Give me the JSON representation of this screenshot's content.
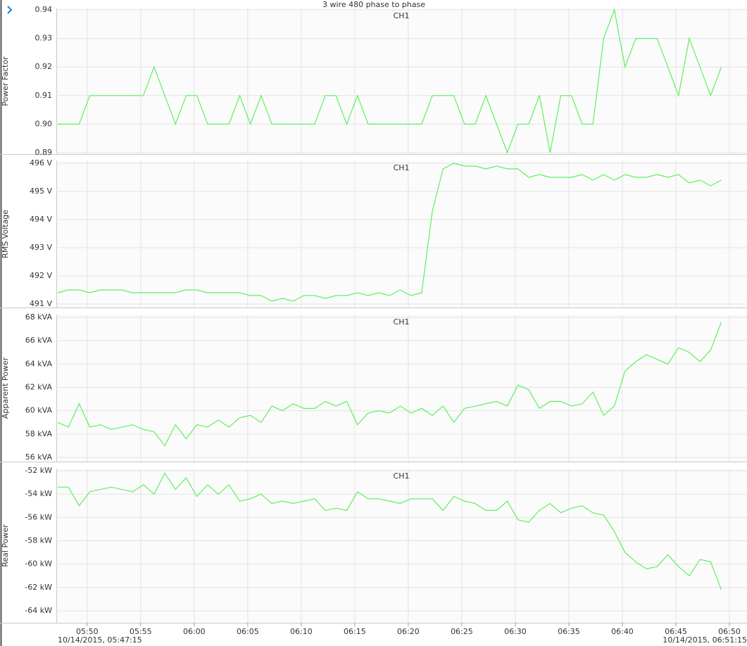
{
  "chart_data": {
    "type": "line",
    "title": "3 wire 480 phase to phase",
    "x": [
      "2015-10-14T05:47:15",
      "2015-10-14T05:48:15",
      "2015-10-14T05:49:15",
      "2015-10-14T05:50:15",
      "2015-10-14T05:51:15",
      "2015-10-14T05:52:15",
      "2015-10-14T05:53:15",
      "2015-10-14T05:54:15",
      "2015-10-14T05:55:15",
      "2015-10-14T05:56:15",
      "2015-10-14T05:57:15",
      "2015-10-14T05:58:15",
      "2015-10-14T05:59:15",
      "2015-10-14T06:00:15",
      "2015-10-14T06:01:15",
      "2015-10-14T06:02:15",
      "2015-10-14T06:03:15",
      "2015-10-14T06:04:15",
      "2015-10-14T06:05:15",
      "2015-10-14T06:06:15",
      "2015-10-14T06:07:15",
      "2015-10-14T06:08:15",
      "2015-10-14T06:09:15",
      "2015-10-14T06:10:15",
      "2015-10-14T06:11:15",
      "2015-10-14T06:12:15",
      "2015-10-14T06:13:15",
      "2015-10-14T06:14:15",
      "2015-10-14T06:15:15",
      "2015-10-14T06:16:15",
      "2015-10-14T06:17:15",
      "2015-10-14T06:18:15",
      "2015-10-14T06:19:15",
      "2015-10-14T06:20:15",
      "2015-10-14T06:21:15",
      "2015-10-14T06:22:15",
      "2015-10-14T06:23:15",
      "2015-10-14T06:24:15",
      "2015-10-14T06:25:15",
      "2015-10-14T06:26:15",
      "2015-10-14T06:27:15",
      "2015-10-14T06:28:15",
      "2015-10-14T06:29:15",
      "2015-10-14T06:30:15",
      "2015-10-14T06:31:15",
      "2015-10-14T06:32:15",
      "2015-10-14T06:33:15",
      "2015-10-14T06:34:15",
      "2015-10-14T06:35:15",
      "2015-10-14T06:36:15",
      "2015-10-14T06:37:15",
      "2015-10-14T06:38:15",
      "2015-10-14T06:39:15",
      "2015-10-14T06:40:15",
      "2015-10-14T06:41:15",
      "2015-10-14T06:42:15",
      "2015-10-14T06:43:15",
      "2015-10-14T06:44:15",
      "2015-10-14T06:45:15",
      "2015-10-14T06:46:15",
      "2015-10-14T06:47:15",
      "2015-10-14T06:48:15",
      "2015-10-14T06:49:15"
    ],
    "xlim": [
      {
        "value": "2015-10-14T05:47:15",
        "label": "10/14/2015, 05:47:15"
      },
      {
        "value": "2015-10-14T06:51:15",
        "label": "10/14/2015, 06:51:15"
      }
    ],
    "xticks": [
      {
        "value": "2015-10-14T05:50:00",
        "label": "05:50"
      },
      {
        "value": "2015-10-14T05:55:00",
        "label": "05:55"
      },
      {
        "value": "2015-10-14T06:00:00",
        "label": "06:00"
      },
      {
        "value": "2015-10-14T06:05:00",
        "label": "06:05"
      },
      {
        "value": "2015-10-14T06:10:00",
        "label": "06:10"
      },
      {
        "value": "2015-10-14T06:15:00",
        "label": "06:15"
      },
      {
        "value": "2015-10-14T06:20:00",
        "label": "06:20"
      },
      {
        "value": "2015-10-14T06:25:00",
        "label": "06:25"
      },
      {
        "value": "2015-10-14T06:30:00",
        "label": "06:30"
      },
      {
        "value": "2015-10-14T06:35:00",
        "label": "06:35"
      },
      {
        "value": "2015-10-14T06:40:00",
        "label": "06:40"
      },
      {
        "value": "2015-10-14T06:45:00",
        "label": "06:45"
      },
      {
        "value": "2015-10-14T06:50:00",
        "label": "06:50"
      }
    ],
    "grid": true,
    "panels": [
      {
        "ylabel": "Power Factor",
        "ylim": [
          0.8895,
          0.9405
        ],
        "yticks": [
          0.89,
          {
            "value": 0.9,
            "label": "0.90"
          },
          0.91,
          0.92,
          0.93,
          0.94
        ],
        "series": [
          {
            "name": "CH1",
            "color": "#5df05d",
            "values": [
              0.9,
              0.9,
              0.9,
              0.91,
              0.91,
              0.91,
              0.91,
              0.91,
              0.91,
              0.92,
              0.91,
              0.9,
              0.91,
              0.91,
              0.9,
              0.9,
              0.9,
              0.91,
              0.9,
              0.91,
              0.9,
              0.9,
              0.9,
              0.9,
              0.9,
              0.91,
              0.91,
              0.9,
              0.91,
              0.9,
              0.9,
              0.9,
              0.9,
              0.9,
              0.9,
              0.91,
              0.91,
              0.91,
              0.9,
              0.9,
              0.91,
              0.9,
              0.89,
              0.9,
              0.9,
              0.91,
              0.89,
              0.91,
              0.91,
              0.9,
              0.9,
              0.93,
              0.94,
              0.92,
              0.93,
              0.93,
              0.93,
              0.92,
              0.91,
              0.93,
              0.92,
              0.91,
              0.92
            ]
          }
        ]
      },
      {
        "ylabel": "RMS Voltage",
        "ylim": [
          490.875,
          496.1
        ],
        "yticks": [
          {
            "value": 491,
            "label": "491 V"
          },
          {
            "value": 492,
            "label": "492 V"
          },
          {
            "value": 493,
            "label": "493 V"
          },
          {
            "value": 494,
            "label": "494 V"
          },
          {
            "value": 495,
            "label": "495 V"
          },
          {
            "value": 496,
            "label": "496 V"
          }
        ],
        "series": [
          {
            "name": "CH1",
            "color": "#5df05d",
            "values": [
              491.4,
              491.5,
              491.5,
              491.4,
              491.5,
              491.5,
              491.5,
              491.4,
              491.4,
              491.4,
              491.4,
              491.4,
              491.5,
              491.5,
              491.4,
              491.4,
              491.4,
              491.4,
              491.3,
              491.3,
              491.1,
              491.2,
              491.1,
              491.3,
              491.3,
              491.2,
              491.3,
              491.3,
              491.4,
              491.3,
              491.4,
              491.3,
              491.5,
              491.3,
              491.4,
              494.3,
              495.8,
              496.0,
              495.9,
              495.9,
              495.8,
              495.9,
              495.8,
              495.8,
              495.5,
              495.6,
              495.5,
              495.5,
              495.5,
              495.6,
              495.4,
              495.6,
              495.4,
              495.6,
              495.5,
              495.5,
              495.6,
              495.5,
              495.6,
              495.3,
              495.4,
              495.2,
              495.4
            ]
          }
        ]
      },
      {
        "ylabel": "Apparent Power",
        "ylim": [
          55.64,
          68.24
        ],
        "yticks": [
          {
            "value": 56,
            "label": "56 kVA"
          },
          {
            "value": 58,
            "label": "58 kVA"
          },
          {
            "value": 60,
            "label": "60 kVA"
          },
          {
            "value": 62,
            "label": "62 kVA"
          },
          {
            "value": 64,
            "label": "64 kVA"
          },
          {
            "value": 66,
            "label": "66 kVA"
          },
          {
            "value": 68,
            "label": "68 kVA"
          }
        ],
        "series": [
          {
            "name": "CH1",
            "color": "#5df05d",
            "values": [
              59.0,
              58.6,
              60.6,
              58.6,
              58.8,
              58.4,
              58.6,
              58.8,
              58.4,
              58.2,
              57.0,
              58.8,
              57.6,
              58.8,
              58.6,
              59.2,
              58.6,
              59.4,
              59.6,
              59.0,
              60.4,
              60.0,
              60.6,
              60.2,
              60.2,
              60.8,
              60.4,
              60.8,
              58.8,
              59.8,
              60.0,
              59.8,
              60.4,
              59.8,
              60.2,
              59.6,
              60.4,
              59.0,
              60.2,
              60.4,
              60.6,
              60.8,
              60.4,
              62.2,
              61.8,
              60.2,
              60.8,
              60.8,
              60.4,
              60.6,
              61.6,
              59.6,
              60.4,
              63.4,
              64.2,
              64.8,
              64.4,
              64.0,
              65.4,
              65.0,
              64.2,
              65.2,
              67.6
            ]
          }
        ]
      },
      {
        "ylabel": "Real Power",
        "ylim": [
          -65.02,
          -51.82
        ],
        "yticks": [
          {
            "value": -64,
            "label": "-64 kW"
          },
          {
            "value": -62,
            "label": "-62 kW"
          },
          {
            "value": -60,
            "label": "-60 kW"
          },
          {
            "value": -58,
            "label": "-58 kW"
          },
          {
            "value": -56,
            "label": "-56 kW"
          },
          {
            "value": -54,
            "label": "-54 kW"
          },
          {
            "value": -52,
            "label": "-52 kW"
          }
        ],
        "series": [
          {
            "name": "CH1",
            "color": "#5df05d",
            "values": [
              -53.4,
              -53.4,
              -55.0,
              -53.8,
              -53.6,
              -53.4,
              -53.6,
              -53.8,
              -53.2,
              -54.0,
              -52.2,
              -53.6,
              -52.6,
              -54.2,
              -53.2,
              -54.0,
              -53.2,
              -54.6,
              -54.4,
              -54.0,
              -54.8,
              -54.6,
              -54.8,
              -54.6,
              -54.4,
              -55.4,
              -55.2,
              -55.4,
              -53.8,
              -54.4,
              -54.4,
              -54.6,
              -54.8,
              -54.4,
              -54.4,
              -54.4,
              -55.4,
              -54.2,
              -54.6,
              -54.8,
              -55.4,
              -55.4,
              -54.6,
              -56.2,
              -56.4,
              -55.4,
              -54.8,
              -55.6,
              -55.2,
              -55.0,
              -55.6,
              -55.8,
              -57.2,
              -59.0,
              -59.8,
              -60.4,
              -60.2,
              -59.2,
              -60.2,
              -61.0,
              -59.6,
              -59.8,
              -62.2
            ]
          }
        ]
      }
    ]
  }
}
